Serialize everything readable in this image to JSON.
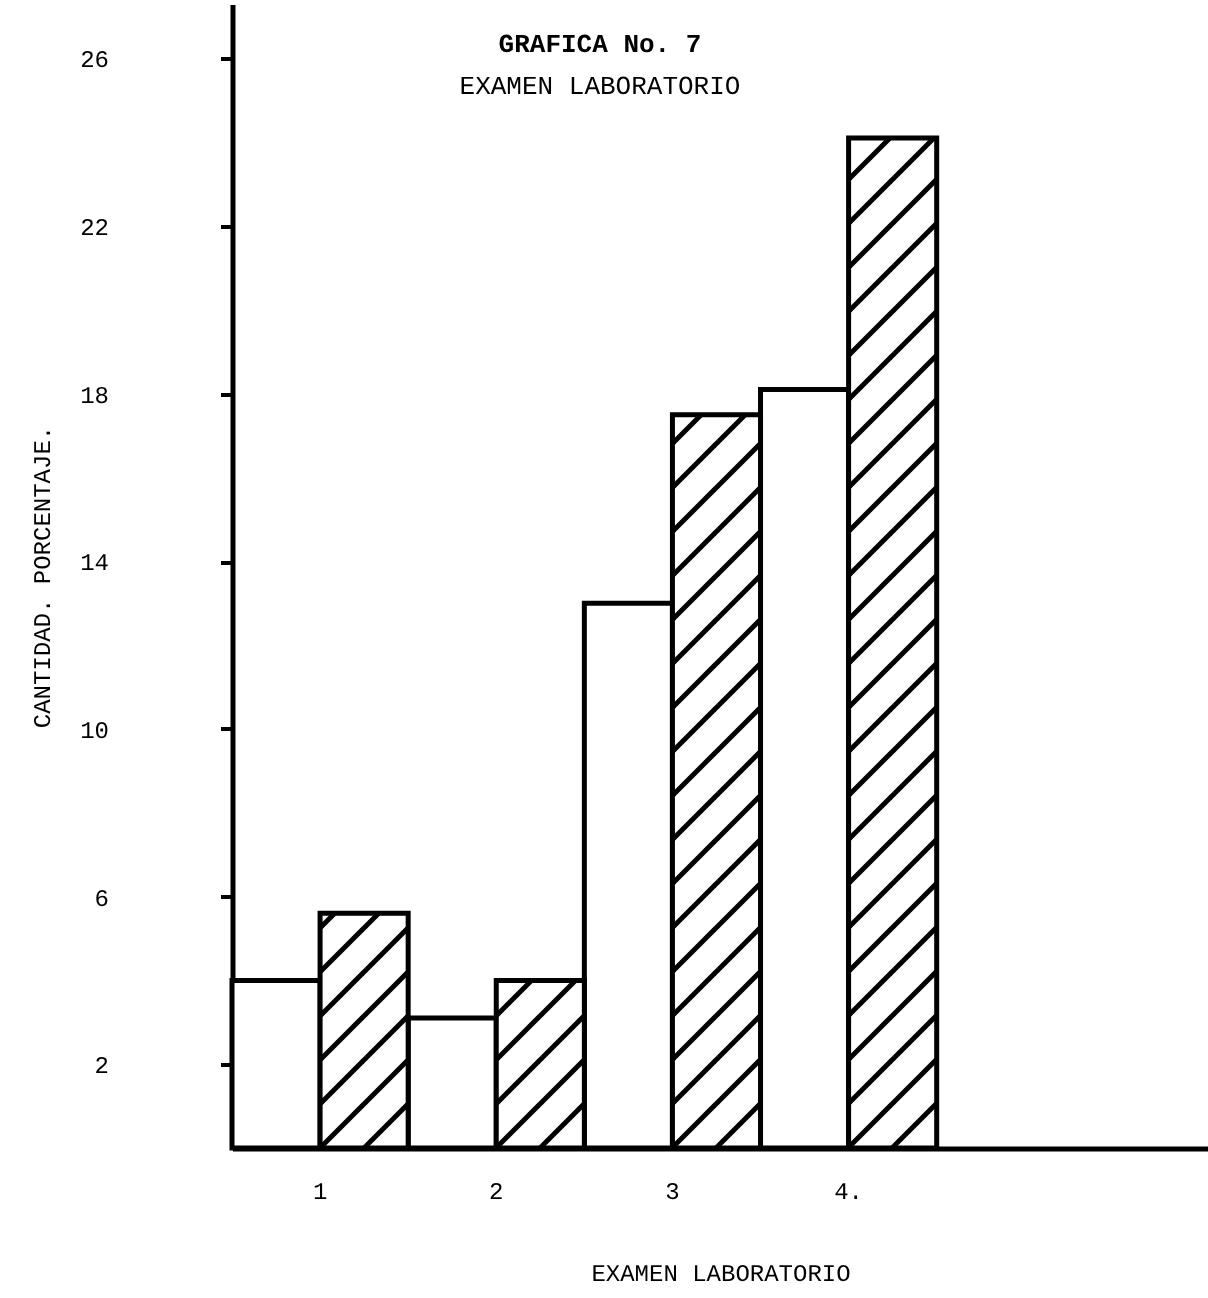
{
  "chart_data": {
    "type": "bar",
    "title": "GRAFICA No. 7",
    "subtitle": "EXAMEN LABORATORIO",
    "xlabel": "EXAMEN LABORATORIO",
    "ylabel": "CANTIDAD. PORCENTAJE.",
    "categories": [
      "1",
      "2",
      "3",
      "4."
    ],
    "series": [
      {
        "color": "#ffffff",
        "values": [
          4.0,
          3.1,
          13.0,
          18.1
        ]
      },
      {
        "color": "#000000",
        "values": [
          5.6,
          4.0,
          17.5,
          24.1
        ]
      }
    ],
    "ylim": [
      0,
      27.3
    ],
    "yticks": [
      2,
      6,
      10,
      14,
      18,
      22,
      26
    ],
    "grid": false,
    "legend": false
  }
}
